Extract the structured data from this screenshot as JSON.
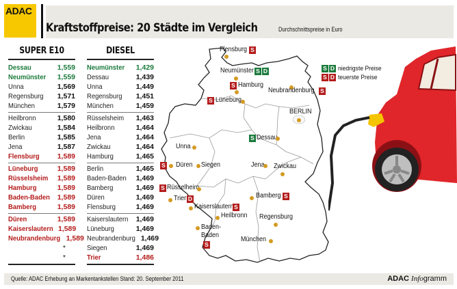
{
  "header": {
    "logo": "ADAC",
    "title": "Kraftstoffpreise: 20 Städte im Vergleich",
    "subtitle": "Durchschnittspreise in Euro"
  },
  "tables": {
    "super_e10": {
      "heading": "SUPER E10",
      "groups": [
        [
          {
            "city": "Dessau",
            "price": "1,559",
            "status": "low"
          },
          {
            "city": "Neumünster",
            "price": "1,559",
            "status": "low"
          },
          {
            "city": "Unna",
            "price": "1,569",
            "status": "normal"
          },
          {
            "city": "Regensburg",
            "price": "1,571",
            "status": "normal"
          },
          {
            "city": "München",
            "price": "1,579",
            "status": "normal"
          }
        ],
        [
          {
            "city": "Heilbronn",
            "price": "1,580",
            "status": "normal"
          },
          {
            "city": "Zwickau",
            "price": "1,584",
            "status": "normal"
          },
          {
            "city": "Berlin",
            "price": "1,585",
            "status": "normal"
          },
          {
            "city": "Jena",
            "price": "1,587",
            "status": "normal"
          },
          {
            "city": "Flensburg",
            "price": "1,589",
            "status": "high"
          }
        ],
        [
          {
            "city": "Lüneburg",
            "price": "1,589",
            "status": "high"
          },
          {
            "city": "Rüsselsheim",
            "price": "1,589",
            "status": "high"
          },
          {
            "city": "Hamburg",
            "price": "1,589",
            "status": "high"
          },
          {
            "city": "Baden-Baden",
            "price": "1,589",
            "status": "high"
          },
          {
            "city": "Bamberg",
            "price": "1,589",
            "status": "high"
          }
        ],
        [
          {
            "city": "Düren",
            "price": "1,589",
            "status": "high"
          },
          {
            "city": "Kaiserslautern",
            "price": "1,589",
            "status": "high"
          },
          {
            "city": "Neubrandenburg",
            "price": "1,589",
            "status": "high"
          },
          {
            "city": "",
            "price": "*",
            "status": "normal"
          },
          {
            "city": "",
            "price": "*",
            "status": "normal"
          }
        ]
      ]
    },
    "diesel": {
      "heading": "DIESEL",
      "groups": [
        [
          {
            "city": "Neumünster",
            "price": "1,429",
            "status": "low"
          },
          {
            "city": "Dessau",
            "price": "1,439",
            "status": "normal"
          },
          {
            "city": "Unna",
            "price": "1,449",
            "status": "normal"
          },
          {
            "city": "Regensburg",
            "price": "1,451",
            "status": "normal"
          },
          {
            "city": "München",
            "price": "1,459",
            "status": "normal"
          }
        ],
        [
          {
            "city": "Rüsselsheim",
            "price": "1,463",
            "status": "normal"
          },
          {
            "city": "Heilbronn",
            "price": "1,464",
            "status": "normal"
          },
          {
            "city": "Jena",
            "price": "1,464",
            "status": "normal"
          },
          {
            "city": "Zwickau",
            "price": "1,464",
            "status": "normal"
          },
          {
            "city": "Hamburg",
            "price": "1,465",
            "status": "normal"
          }
        ],
        [
          {
            "city": "Berlin",
            "price": "1,465",
            "status": "normal"
          },
          {
            "city": "Baden-Baden",
            "price": "1,469",
            "status": "normal"
          },
          {
            "city": "Bamberg",
            "price": "1,469",
            "status": "normal"
          },
          {
            "city": "Düren",
            "price": "1,469",
            "status": "normal"
          },
          {
            "city": "Flensburg",
            "price": "1,469",
            "status": "normal"
          }
        ],
        [
          {
            "city": "Kaiserslautern",
            "price": "1,469",
            "status": "normal"
          },
          {
            "city": "Lüneburg",
            "price": "1,469",
            "status": "normal"
          },
          {
            "city": "Neubrandenburg",
            "price": "1,469",
            "status": "normal"
          },
          {
            "city": "Siegen",
            "price": "1,469",
            "status": "normal"
          },
          {
            "city": "Trier",
            "price": "1,486",
            "status": "high"
          }
        ]
      ]
    }
  },
  "map": {
    "cities": [
      {
        "name": "Flensburg",
        "badges": [
          "S"
        ],
        "badge_color": "red"
      },
      {
        "name": "Neumünster",
        "badges": [
          "S",
          "D"
        ],
        "badge_color": "green"
      },
      {
        "name": "Hamburg",
        "badges": [
          "S"
        ],
        "badge_color": "red"
      },
      {
        "name": "Lüneburg",
        "badges": [
          "S"
        ],
        "badge_color": "red"
      },
      {
        "name": "Neubrandenburg",
        "badges": [
          "S"
        ],
        "badge_color": "red"
      },
      {
        "name": "BERLIN",
        "badges": [],
        "badge_color": ""
      },
      {
        "name": "Dessau",
        "badges": [
          "S"
        ],
        "badge_color": "green"
      },
      {
        "name": "Unna",
        "badges": [],
        "badge_color": ""
      },
      {
        "name": "Düren",
        "badges": [
          "S"
        ],
        "badge_color": "red"
      },
      {
        "name": "Siegen",
        "badges": [],
        "badge_color": ""
      },
      {
        "name": "Jena",
        "badges": [],
        "badge_color": ""
      },
      {
        "name": "Zwickau",
        "badges": [],
        "badge_color": ""
      },
      {
        "name": "Rüsselheim",
        "badges": [
          "S"
        ],
        "badge_color": "red"
      },
      {
        "name": "Trier",
        "badges": [
          "D"
        ],
        "badge_color": "red"
      },
      {
        "name": "Bamberg",
        "badges": [
          "S"
        ],
        "badge_color": "red"
      },
      {
        "name": "Kaiserslautern",
        "badges": [
          "S"
        ],
        "badge_color": "red"
      },
      {
        "name": "Heilbronn",
        "badges": [],
        "badge_color": ""
      },
      {
        "name": "Regensburg",
        "badges": [],
        "badge_color": ""
      },
      {
        "name": "Baden-",
        "badges": [],
        "badge_color": ""
      },
      {
        "name": "Baden",
        "badges": [
          "S"
        ],
        "badge_color": "red"
      },
      {
        "name": "München",
        "badges": [],
        "badge_color": ""
      }
    ]
  },
  "legend": {
    "low": {
      "badges": [
        "S",
        "D"
      ],
      "label": "niedrigste Preise",
      "color": "#1b7a3b"
    },
    "high": {
      "badges": [
        "S",
        "D"
      ],
      "label": "teuerste Preise",
      "color": "#b41c1c"
    }
  },
  "footer": {
    "source": "Quelle: ADAC Erhebung an Markentankstellen    Stand: 20. September 2011",
    "brand_bold": "ADAC",
    "brand_italic": "Info",
    "brand_rest": "gramm"
  },
  "colors": {
    "brand_yellow": "#f7c800",
    "band_gray": "#ebe9e3",
    "low_green": "#1b7a3b",
    "high_red": "#b41c1c",
    "city_dot": "#d49a22",
    "car_red": "#e0262a"
  }
}
